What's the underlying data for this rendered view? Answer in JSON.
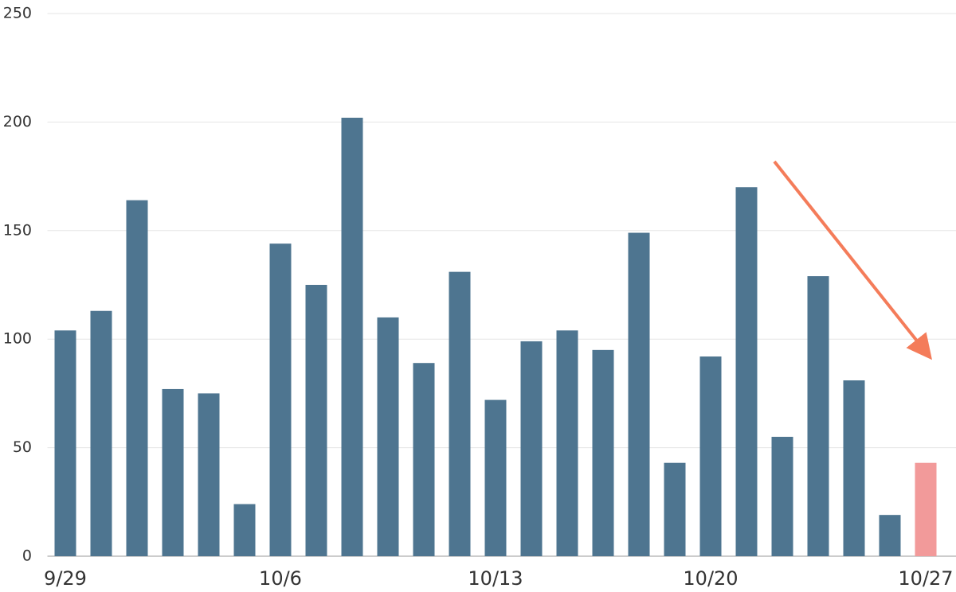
{
  "chart_data": {
    "type": "bar",
    "categories": [
      "9/29",
      null,
      null,
      null,
      null,
      null,
      "10/6",
      null,
      null,
      null,
      null,
      null,
      "10/13",
      null,
      null,
      null,
      null,
      null,
      "10/20",
      null,
      null,
      null,
      null,
      null,
      "10/27"
    ],
    "values": [
      104,
      113,
      164,
      77,
      75,
      24,
      144,
      125,
      202,
      110,
      89,
      131,
      72,
      99,
      104,
      95,
      149,
      43,
      92,
      170,
      55,
      129,
      81,
      19,
      43
    ],
    "colors": [
      "#4e7590",
      "#4e7590",
      "#4e7590",
      "#4e7590",
      "#4e7590",
      "#4e7590",
      "#4e7590",
      "#4e7590",
      "#4e7590",
      "#4e7590",
      "#4e7590",
      "#4e7590",
      "#4e7590",
      "#4e7590",
      "#4e7590",
      "#4e7590",
      "#4e7590",
      "#4e7590",
      "#4e7590",
      "#4e7590",
      "#4e7590",
      "#4e7590",
      "#4e7590",
      "#4e7590",
      "#f29a9a"
    ],
    "ylim": [
      0,
      250
    ],
    "yticks": [
      0,
      50,
      100,
      150,
      200,
      250
    ],
    "grid": true
  }
}
